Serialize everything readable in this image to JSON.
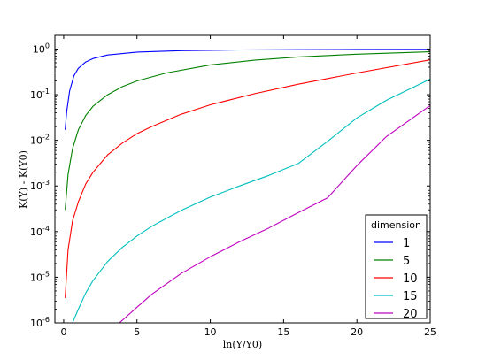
{
  "chart_data": {
    "type": "line",
    "title": "",
    "xlabel": "ln(Y/Y0)",
    "ylabel": "K(Y) - K(Y0)",
    "xlim": [
      -0.6,
      25
    ],
    "ylim_log10": [
      -6,
      0.3
    ],
    "yscale": "log",
    "x_ticks": [
      0,
      5,
      10,
      15,
      20,
      25
    ],
    "x_tick_labels": [
      "0",
      "5",
      "10",
      "15",
      "20",
      "25"
    ],
    "y_ticks_exp": [
      -6,
      -5,
      -4,
      -3,
      -2,
      -1,
      0
    ],
    "y_tick_base": "10",
    "y_tick_exponents": [
      "-6",
      "-5",
      "-4",
      "-3",
      "-2",
      "-1",
      "0"
    ],
    "legend": {
      "title": "dimension",
      "position": "lower-right"
    },
    "series": [
      {
        "name": "1",
        "color": "#0000ff",
        "x": [
          0.1,
          0.2,
          0.4,
          0.7,
          1,
          1.5,
          2,
          3,
          5,
          8,
          12,
          16,
          20,
          25
        ],
        "y": [
          0.017,
          0.042,
          0.12,
          0.26,
          0.38,
          0.52,
          0.62,
          0.74,
          0.86,
          0.92,
          0.955,
          0.97,
          0.98,
          0.985
        ]
      },
      {
        "name": "5",
        "color": "#008000",
        "x": [
          0.1,
          0.3,
          0.6,
          1,
          1.5,
          2,
          3,
          4,
          5,
          7,
          10,
          13,
          16,
          20,
          25
        ],
        "y": [
          0.0003,
          0.0018,
          0.0065,
          0.017,
          0.035,
          0.056,
          0.1,
          0.15,
          0.2,
          0.3,
          0.45,
          0.57,
          0.67,
          0.77,
          0.87
        ]
      },
      {
        "name": "10",
        "color": "#ff0000",
        "x": [
          0.1,
          0.3,
          0.6,
          1,
          1.5,
          2,
          3,
          4,
          5,
          6,
          8,
          10,
          13,
          16,
          20,
          25
        ],
        "y": [
          3.5e-06,
          4e-05,
          0.00017,
          0.00045,
          0.0011,
          0.002,
          0.0048,
          0.0087,
          0.014,
          0.02,
          0.037,
          0.06,
          0.105,
          0.17,
          0.3,
          0.58
        ]
      },
      {
        "name": "15",
        "color": "#00bfbf",
        "x": [
          0.6,
          1,
          1.5,
          2,
          3,
          4,
          5,
          6,
          8,
          10,
          12,
          14,
          16,
          18,
          20,
          22,
          25
        ],
        "y": [
          1e-06,
          2e-06,
          4.5e-06,
          8.5e-06,
          2.2e-05,
          4.5e-05,
          8e-05,
          0.00013,
          0.00029,
          0.00057,
          0.001,
          0.0017,
          0.0031,
          0.0095,
          0.031,
          0.075,
          0.22
        ]
      },
      {
        "name": "20",
        "color": "#bf00bf",
        "x": [
          3.8,
          5,
          6,
          8,
          10,
          12,
          14,
          16,
          18,
          20,
          22,
          25
        ],
        "y": [
          1e-06,
          2.2e-06,
          4.2e-06,
          1.2e-05,
          2.8e-05,
          6e-05,
          0.00012,
          0.00026,
          0.00055,
          0.0028,
          0.012,
          0.058
        ]
      }
    ]
  }
}
